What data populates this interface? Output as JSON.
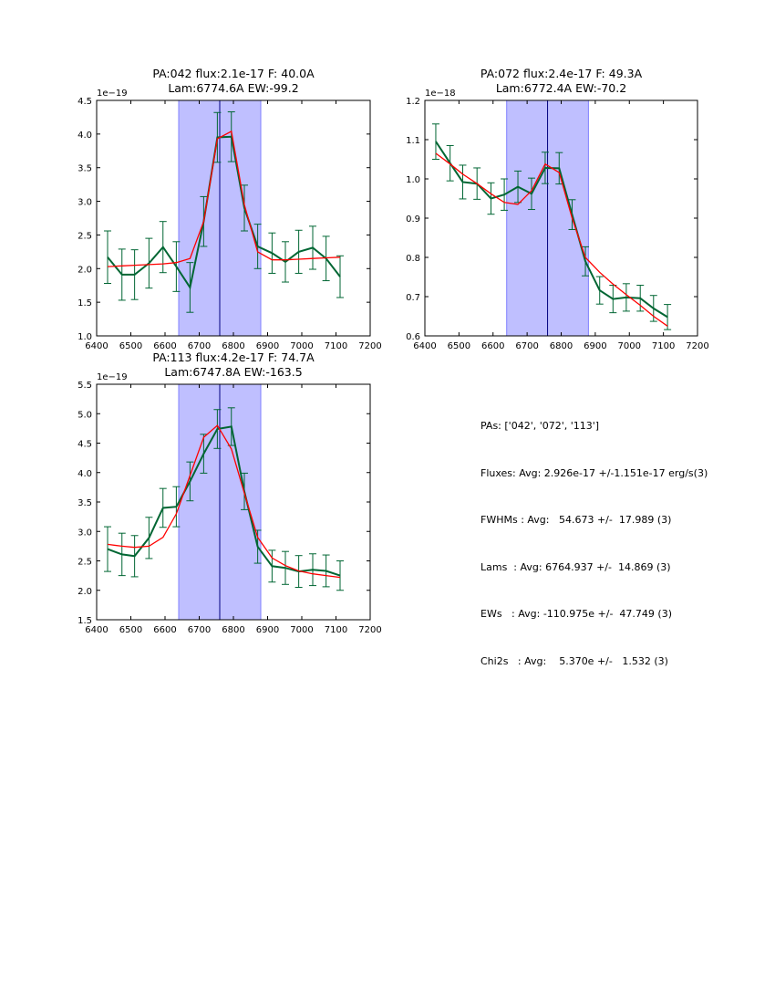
{
  "chart_data": [
    {
      "type": "line",
      "title": "PA:042 flux:2.1e-17 F: 40.0A\nLam:6774.6A EW:-99.2",
      "xlim": [
        6400,
        7200
      ],
      "ylim": [
        1.0,
        4.5
      ],
      "x_ticks": [
        6400,
        6500,
        6600,
        6700,
        6800,
        6900,
        7000,
        7100,
        7200
      ],
      "y_ticks": [
        "1.0",
        "1.5",
        "2.0",
        "2.5",
        "3.0",
        "3.5",
        "4.0",
        "4.5"
      ],
      "y_offset_label": "1e−19",
      "shaded_span": [
        6640,
        6880
      ],
      "vline": 6760,
      "x": [
        6432,
        6474,
        6511,
        6553,
        6594,
        6633,
        6673,
        6713,
        6753,
        6794,
        6832,
        6871,
        6913,
        6952,
        6991,
        7032,
        7071,
        7112
      ],
      "series": [
        {
          "values": [
            2.17,
            1.91,
            1.91,
            2.08,
            2.32,
            2.03,
            1.72,
            2.7,
            3.95,
            3.96,
            2.9,
            2.33,
            2.23,
            2.1,
            2.25,
            2.31,
            2.15,
            1.88
          ],
          "errors": [
            0.39,
            0.38,
            0.37,
            0.37,
            0.38,
            0.37,
            0.37,
            0.37,
            0.37,
            0.37,
            0.34,
            0.33,
            0.3,
            0.3,
            0.32,
            0.32,
            0.33,
            0.31
          ],
          "color": "#006633"
        },
        {
          "values": [
            2.03,
            2.04,
            2.05,
            2.06,
            2.07,
            2.09,
            2.15,
            2.7,
            3.93,
            4.04,
            2.95,
            2.25,
            2.13,
            2.13,
            2.14,
            2.15,
            2.16,
            2.17
          ],
          "color": "#ff0000"
        }
      ]
    },
    {
      "type": "line",
      "title": "PA:072 flux:2.4e-17 F: 49.3A\nLam:6772.4A EW:-70.2",
      "xlim": [
        6400,
        7200
      ],
      "ylim": [
        0.6,
        1.2
      ],
      "x_ticks": [
        6400,
        6500,
        6600,
        6700,
        6800,
        6900,
        7000,
        7100,
        7200
      ],
      "y_ticks": [
        "0.6",
        "0.7",
        "0.8",
        "0.9",
        "1.0",
        "1.1",
        "1.2"
      ],
      "y_offset_label": "1e−18",
      "shaded_span": [
        6640,
        6880
      ],
      "vline": 6760,
      "x": [
        6432,
        6474,
        6511,
        6553,
        6594,
        6633,
        6673,
        6713,
        6753,
        6794,
        6832,
        6871,
        6913,
        6952,
        6991,
        7032,
        7071,
        7112
      ],
      "series": [
        {
          "values": [
            1.095,
            1.04,
            0.992,
            0.988,
            0.95,
            0.96,
            0.98,
            0.962,
            1.028,
            1.027,
            0.909,
            0.79,
            0.716,
            0.694,
            0.698,
            0.696,
            0.67,
            0.648
          ],
          "errors": [
            0.045,
            0.045,
            0.043,
            0.04,
            0.04,
            0.04,
            0.04,
            0.04,
            0.04,
            0.04,
            0.038,
            0.037,
            0.035,
            0.035,
            0.035,
            0.033,
            0.033,
            0.032
          ],
          "color": "#006633"
        },
        {
          "values": [
            1.065,
            1.038,
            1.012,
            0.988,
            0.962,
            0.94,
            0.935,
            0.97,
            1.038,
            1.016,
            0.9,
            0.8,
            0.762,
            0.732,
            0.705,
            0.678,
            0.65,
            0.625
          ],
          "color": "#ff0000"
        }
      ]
    },
    {
      "type": "line",
      "title": "PA:113 flux:4.2e-17 F: 74.7A\nLam:6747.8A EW:-163.5",
      "xlim": [
        6400,
        7200
      ],
      "ylim": [
        1.5,
        5.5
      ],
      "x_ticks": [
        6400,
        6500,
        6600,
        6700,
        6800,
        6900,
        7000,
        7100,
        7200
      ],
      "y_ticks": [
        "1.5",
        "2.0",
        "2.5",
        "3.0",
        "3.5",
        "4.0",
        "4.5",
        "5.0",
        "5.5"
      ],
      "y_offset_label": "1e−19",
      "shaded_span": [
        6640,
        6880
      ],
      "vline": 6760,
      "x": [
        6432,
        6474,
        6511,
        6553,
        6594,
        6633,
        6673,
        6713,
        6753,
        6794,
        6832,
        6871,
        6913,
        6952,
        6991,
        7032,
        7071,
        7112
      ],
      "series": [
        {
          "values": [
            2.7,
            2.61,
            2.58,
            2.89,
            3.4,
            3.42,
            3.85,
            4.32,
            4.74,
            4.78,
            3.68,
            2.74,
            2.41,
            2.38,
            2.32,
            2.35,
            2.33,
            2.25
          ],
          "errors": [
            0.38,
            0.36,
            0.35,
            0.35,
            0.33,
            0.34,
            0.33,
            0.33,
            0.33,
            0.32,
            0.31,
            0.28,
            0.27,
            0.28,
            0.27,
            0.27,
            0.27,
            0.25
          ],
          "color": "#006633"
        },
        {
          "values": [
            2.78,
            2.75,
            2.73,
            2.75,
            2.9,
            3.3,
            3.95,
            4.6,
            4.8,
            4.4,
            3.65,
            2.9,
            2.55,
            2.42,
            2.33,
            2.28,
            2.25,
            2.22
          ],
          "color": "#ff0000"
        }
      ]
    }
  ],
  "summary": {
    "pas": "PAs: ['042', '072', '113']",
    "fluxes": "Fluxes: Avg: 2.926e-17 +/-1.151e-17 erg/s(3)",
    "fwhms": "FWHMs : Avg:   54.673 +/-  17.989 (3)",
    "lams": "Lams  : Avg: 6764.937 +/-  14.869 (3)",
    "ews": "EWs   : Avg: -110.975e +/-  47.749 (3)",
    "chi2s": "Chi2s   : Avg:    5.370e +/-   1.532 (3)"
  },
  "colors": {
    "data": "#006633",
    "model": "#ff0000",
    "span_fill": "#bfbfff",
    "span_edge": "#8080ff",
    "vline": "#000080"
  }
}
